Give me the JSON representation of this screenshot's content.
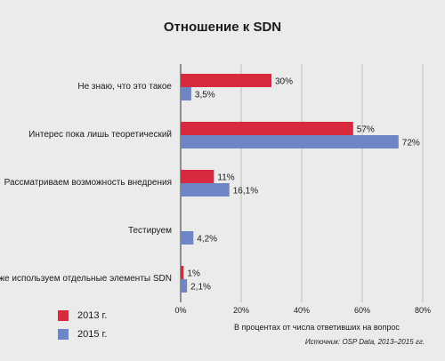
{
  "chart_data": {
    "type": "bar",
    "orientation": "horizontal",
    "title": "Отношение к SDN",
    "categories": [
      "Не знаю, что это такое",
      "Интерес пока лишь теоретический",
      "Рассматриваем возможность внедрения",
      "Тестируем",
      "Уже используем отдельные элементы SDN"
    ],
    "series": [
      {
        "name": "2013 г.",
        "color": "#d72a3f",
        "values": [
          30,
          57,
          11,
          null,
          1
        ],
        "labels": [
          "30%",
          "57%",
          "11%",
          "",
          "1%"
        ]
      },
      {
        "name": "2015 г.",
        "color": "#6f86c6",
        "values": [
          3.5,
          72,
          16.1,
          4.2,
          2.1
        ],
        "labels": [
          "3,5%",
          "72%",
          "16,1%",
          "4,2%",
          "2,1%"
        ]
      }
    ],
    "xlim": [
      0,
      80
    ],
    "xticks": [
      0,
      20,
      40,
      60,
      80
    ],
    "xtick_labels": [
      "0%",
      "20%",
      "40%",
      "60%",
      "80%"
    ],
    "xlabel": "В процентах от числа ответивших на вопрос",
    "grid": true,
    "legend_position": "bottom-left"
  },
  "source": "Источник: OSP Data, 2013–2015 гг."
}
